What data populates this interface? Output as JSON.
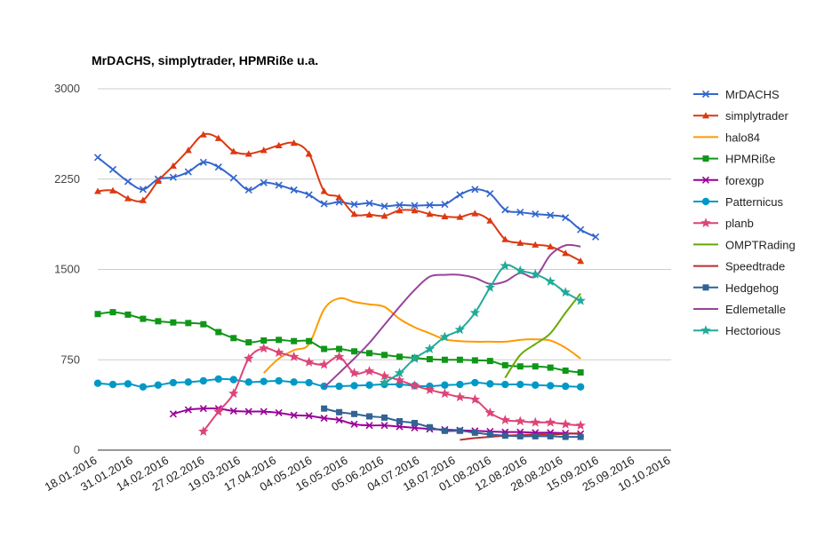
{
  "chart_data": {
    "type": "line",
    "title": "MrDACHS, simplytrader, HPMRiße u.a.",
    "xlabel": "",
    "ylabel": "",
    "ylim": [
      0,
      3000
    ],
    "yticks": [
      "0",
      "750",
      "1500",
      "2250",
      "3000"
    ],
    "ytick_values": [
      0,
      750,
      1500,
      2250,
      3000
    ],
    "x": [
      "18.01.2016",
      "25.01.2016",
      "01.02.2016",
      "08.02.2016",
      "15.02.2016",
      "22.02.2016",
      "29.02.2016",
      "07.03.2016",
      "14.03.2016",
      "21.03.2016",
      "28.03.2016",
      "04.04.2016",
      "11.04.2016",
      "18.04.2016",
      "25.04.2016",
      "02.05.2016",
      "09.05.2016",
      "16.05.2016",
      "23.05.2016",
      "30.05.2016",
      "06.06.2016",
      "13.06.2016",
      "20.06.2016",
      "27.06.2016",
      "04.07.2016",
      "11.07.2016",
      "18.07.2016",
      "25.07.2016",
      "01.08.2016",
      "08.08.2016",
      "15.08.2016",
      "22.08.2016",
      "29.08.2016",
      "05.09.2016",
      "12.09.2016",
      "19.09.2016",
      "26.09.2016",
      "03.10.2016",
      "10.10.2016"
    ],
    "xtick_labels": [
      "18.01.2016",
      "31.01.2016",
      "14.02.2016",
      "27.02.2016",
      "19.03.2016",
      "17.04.2016",
      "04.05.2016",
      "16.05.2016",
      "05.06.2016",
      "04.07.2016",
      "18.07.2016",
      "01.08.2016",
      "12.08.2016",
      "28.08.2016",
      "15.09.2016",
      "25.09.2016",
      "10.10.2016"
    ],
    "grid": true,
    "legend_position": "right",
    "series": [
      {
        "name": "MrDACHS",
        "color": "#3366cc",
        "marker": "x",
        "values": [
          2430,
          2330,
          2230,
          2165,
          2250,
          2265,
          2310,
          2390,
          2350,
          2260,
          2160,
          2220,
          2200,
          2160,
          2120,
          2045,
          2060,
          2040,
          2050,
          2025,
          2035,
          2030,
          2035,
          2040,
          2120,
          2165,
          2130,
          1995,
          1975,
          1960,
          1950,
          1930,
          1830,
          1770,
          null,
          null,
          null,
          null,
          null
        ]
      },
      {
        "name": "simplytrader",
        "color": "#dc3912",
        "marker": "triangle",
        "values": [
          2150,
          2155,
          2090,
          2075,
          2235,
          2360,
          2490,
          2620,
          2590,
          2480,
          2460,
          2490,
          2530,
          2550,
          2460,
          2150,
          2100,
          1960,
          1955,
          1945,
          1990,
          1990,
          1960,
          1940,
          1935,
          1965,
          1905,
          1750,
          1720,
          1705,
          1690,
          1635,
          1570,
          null,
          null,
          null,
          null,
          null,
          null
        ]
      },
      {
        "name": "halo84",
        "color": "#ff9900",
        "marker": "none",
        "values": [
          null,
          null,
          null,
          null,
          null,
          null,
          null,
          null,
          null,
          null,
          null,
          640,
          760,
          830,
          880,
          1170,
          1260,
          1230,
          1210,
          1190,
          1090,
          1020,
          970,
          920,
          905,
          900,
          900,
          900,
          915,
          920,
          910,
          850,
          760,
          null,
          null,
          null,
          null,
          null,
          null
        ]
      },
      {
        "name": "HPMRiße",
        "color": "#109618",
        "marker": "square",
        "values": [
          1130,
          1145,
          1125,
          1090,
          1070,
          1060,
          1055,
          1045,
          980,
          930,
          895,
          910,
          915,
          905,
          905,
          840,
          840,
          820,
          805,
          790,
          775,
          765,
          755,
          750,
          750,
          745,
          740,
          705,
          695,
          695,
          685,
          660,
          645,
          null,
          null,
          null,
          null,
          null,
          null
        ]
      },
      {
        "name": "forexgp",
        "color": "#990099",
        "marker": "x",
        "values": [
          null,
          null,
          null,
          null,
          null,
          300,
          335,
          345,
          345,
          325,
          320,
          320,
          310,
          290,
          285,
          265,
          250,
          215,
          205,
          205,
          195,
          185,
          175,
          170,
          165,
          160,
          155,
          150,
          150,
          145,
          145,
          140,
          135,
          null,
          null,
          null,
          null,
          null,
          null
        ]
      },
      {
        "name": "Patternicus",
        "color": "#0099c6",
        "marker": "circle",
        "values": [
          555,
          545,
          550,
          525,
          540,
          560,
          565,
          575,
          590,
          585,
          565,
          570,
          575,
          565,
          560,
          530,
          530,
          535,
          540,
          545,
          545,
          535,
          530,
          540,
          545,
          560,
          550,
          545,
          545,
          540,
          535,
          530,
          525,
          null,
          null,
          null,
          null,
          null,
          null
        ]
      },
      {
        "name": "planb",
        "color": "#dd4477",
        "marker": "star",
        "values": [
          null,
          null,
          null,
          null,
          null,
          null,
          null,
          155,
          320,
          470,
          760,
          845,
          810,
          775,
          730,
          710,
          775,
          640,
          655,
          615,
          580,
          535,
          500,
          470,
          440,
          420,
          310,
          250,
          240,
          230,
          230,
          215,
          205,
          null,
          null,
          null,
          null,
          null,
          null
        ]
      },
      {
        "name": "OMPTRading",
        "color": "#66aa00",
        "marker": "none",
        "values": [
          null,
          null,
          null,
          null,
          null,
          null,
          null,
          null,
          null,
          null,
          null,
          null,
          null,
          null,
          null,
          null,
          null,
          null,
          null,
          null,
          null,
          null,
          null,
          null,
          null,
          null,
          null,
          600,
          790,
          880,
          970,
          1140,
          1300,
          null,
          null,
          null,
          null,
          null,
          null
        ]
      },
      {
        "name": "Speedtrade",
        "color": "#b82e2e",
        "marker": "none",
        "values": [
          null,
          null,
          null,
          null,
          null,
          null,
          null,
          null,
          null,
          null,
          null,
          null,
          null,
          null,
          null,
          null,
          null,
          null,
          null,
          null,
          null,
          null,
          null,
          null,
          85,
          100,
          110,
          120,
          125,
          130,
          130,
          135,
          140,
          null,
          null,
          null,
          null,
          null,
          null
        ]
      },
      {
        "name": "Hedgehog",
        "color": "#316395",
        "marker": "square",
        "values": [
          null,
          null,
          null,
          null,
          null,
          null,
          null,
          null,
          null,
          null,
          null,
          null,
          null,
          null,
          null,
          345,
          315,
          300,
          280,
          270,
          240,
          225,
          190,
          160,
          160,
          145,
          130,
          120,
          115,
          115,
          115,
          110,
          110,
          null,
          null,
          null,
          null,
          null,
          null
        ]
      },
      {
        "name": "Edlemetalle",
        "color": "#994499",
        "marker": "none",
        "values": [
          null,
          null,
          null,
          null,
          null,
          null,
          null,
          null,
          null,
          null,
          null,
          null,
          null,
          null,
          null,
          520,
          640,
          760,
          890,
          1040,
          1190,
          1330,
          1440,
          1455,
          1455,
          1430,
          1380,
          1400,
          1470,
          1440,
          1620,
          1700,
          1690,
          null,
          null,
          null,
          null,
          null,
          null
        ]
      },
      {
        "name": "Hectorious",
        "color": "#22aa99",
        "marker": "star",
        "values": [
          null,
          null,
          null,
          null,
          null,
          null,
          null,
          null,
          null,
          null,
          null,
          null,
          null,
          null,
          null,
          null,
          null,
          null,
          null,
          560,
          640,
          760,
          840,
          940,
          1000,
          1140,
          1350,
          1530,
          1490,
          1460,
          1400,
          1310,
          1240,
          null,
          null,
          null,
          null,
          null,
          null
        ]
      }
    ]
  }
}
